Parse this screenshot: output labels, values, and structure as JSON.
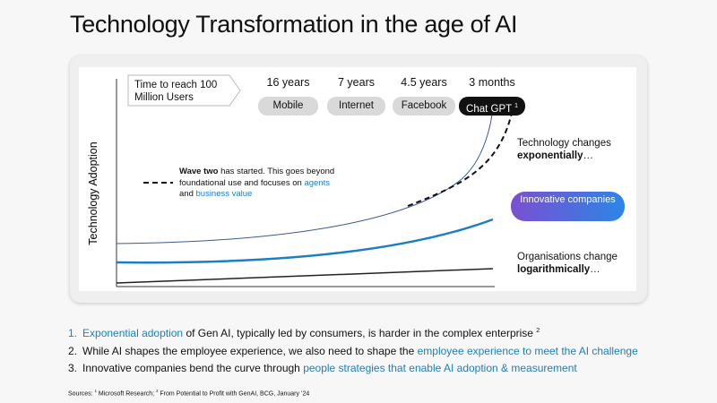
{
  "header": {
    "title": "Technology Transformation in the age of AI"
  },
  "diagram": {
    "y_axis_label": "Technology Adoption",
    "time_label": "Time to reach 100 Million Users",
    "milestones": [
      {
        "time": "16 years",
        "label": "Mobile"
      },
      {
        "time": "7 years",
        "label": "Internet"
      },
      {
        "time": "4.5 years",
        "label": "Facebook"
      },
      {
        "time": "3 months",
        "label": "Chat GPT",
        "note": "1"
      }
    ],
    "wave_note": [
      {
        "text": "Wave two",
        "style": "bold"
      },
      {
        "text": " has started. This goes beyond foundational use and focuses on ",
        "style": "plain"
      },
      {
        "text": "agents",
        "style": "accent"
      },
      {
        "text": " and ",
        "style": "plain"
      },
      {
        "text": "business value",
        "style": "accent"
      }
    ],
    "top_curve_label": [
      {
        "text": "Technology changes ",
        "style": "plain"
      },
      {
        "text": "exponentially",
        "style": "bold"
      },
      {
        "text": "…",
        "style": "plain"
      }
    ],
    "middle_curve_label": "Innovative companies",
    "bottom_curve_label": [
      {
        "text": "Organisations change ",
        "style": "plain"
      },
      {
        "text": "logarithmically",
        "style": "bold"
      },
      {
        "text": "…",
        "style": "plain"
      }
    ]
  },
  "bullets": [
    {
      "number": "1.",
      "segments": [
        {
          "text": "Exponential adoption",
          "style": "accent"
        },
        {
          "text": " of Gen AI, typically led by consumers, is harder in the complex enterprise ",
          "style": "plain"
        }
      ],
      "note": "2"
    },
    {
      "number": "2.",
      "segments": [
        {
          "text": "While AI shapes the employee experience, we also need to shape the ",
          "style": "plain"
        },
        {
          "text": "employee experience to meet the AI challenge",
          "style": "accent"
        }
      ]
    },
    {
      "number": "3.",
      "segments": [
        {
          "text": "Innovative companies bend the curve through ",
          "style": "plain"
        },
        {
          "text": "people strategies that enable AI adoption & measurement",
          "style": "accent"
        }
      ]
    }
  ],
  "sources": {
    "prefix": "Sources:",
    "refs": [
      {
        "mark": "1",
        "text": "Microsoft Research;"
      },
      {
        "mark": "2",
        "text": "From Potential to Profit with GenAI, BCG, January ’24"
      }
    ]
  }
}
